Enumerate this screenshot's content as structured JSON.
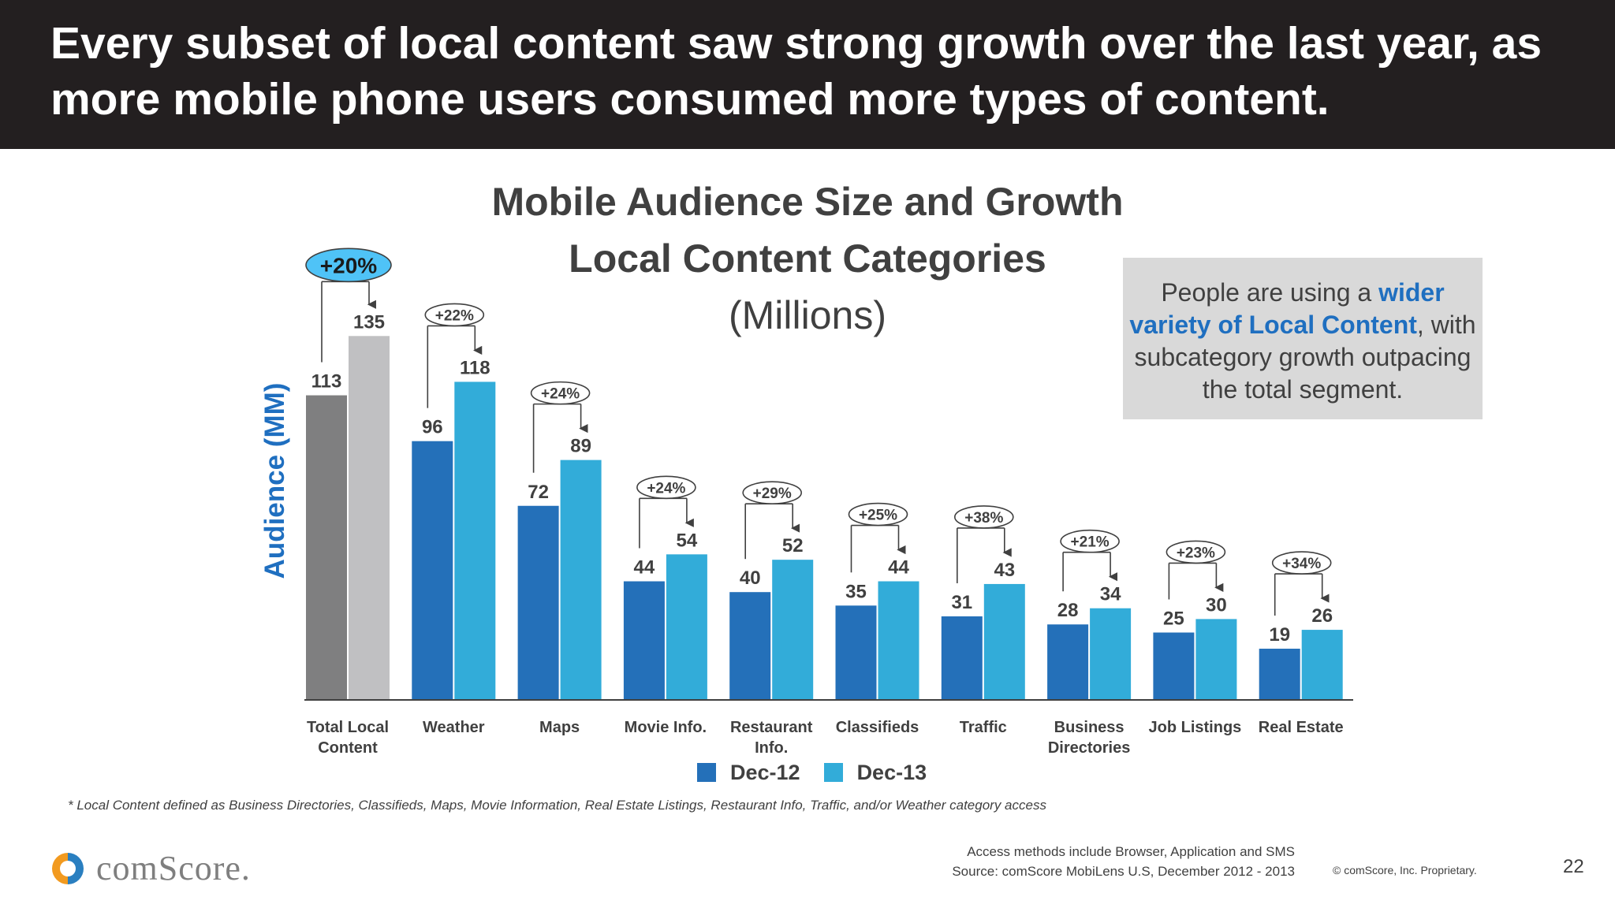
{
  "slide": {
    "headline": "Every subset of local content saw strong growth over the last year, as\nmore mobile phone users consumed more types of content.",
    "callout": {
      "before": "People are using a ",
      "emphasis": "wider variety of Local Content",
      "after": ", with subcategory growth outpacing the total segment."
    },
    "footnote": "* Local Content defined as Business Directories, Classifieds, Maps, Movie Information, Real Estate Listings, Restaurant Info, Traffic, and/or Weather category access",
    "logo_text": "comScore.",
    "source_line1": "Access methods include Browser, Application and SMS",
    "source_line2": "Source: comScore MobiLens U.S, December 2012 - 2013",
    "copyright": "© comScore, Inc. Proprietary.",
    "page_number": "22"
  },
  "chart_data": {
    "type": "bar",
    "title": "Mobile Audience Size and Growth",
    "subtitle": "Local Content Categories",
    "unit": "(Millions)",
    "ylabel": "Audience (MM)",
    "xlabel": "",
    "ylim": [
      0,
      135
    ],
    "grid": false,
    "legend_position": "bottom",
    "categories": [
      "Total Local Content",
      "Weather",
      "Maps",
      "Movie Info.",
      "Restaurant Info.",
      "Classifieds",
      "Traffic",
      "Business Directories",
      "Job Listings",
      "Real Estate"
    ],
    "category_lines": [
      [
        "Total Local",
        "Content"
      ],
      [
        "Weather"
      ],
      [
        "Maps"
      ],
      [
        "Movie Info."
      ],
      [
        "Restaurant",
        "Info."
      ],
      [
        "Classifieds"
      ],
      [
        "Traffic"
      ],
      [
        "Business",
        "Directories"
      ],
      [
        "Job Listings"
      ],
      [
        "Real Estate"
      ]
    ],
    "series": [
      {
        "name": "Dec-12",
        "values": [
          113,
          96,
          72,
          44,
          40,
          35,
          31,
          28,
          25,
          19
        ]
      },
      {
        "name": "Dec-13",
        "values": [
          135,
          118,
          89,
          54,
          52,
          44,
          43,
          34,
          30,
          26
        ]
      }
    ],
    "growth_labels": [
      "+20%",
      "+22%",
      "+24%",
      "+24%",
      "+29%",
      "+25%",
      "+38%",
      "+21%",
      "+23%",
      "+34%"
    ],
    "colors": {
      "dec12": "#2470b9",
      "dec13": "#32acd9",
      "total_dec12": "#7f7f80",
      "total_dec13": "#c0c0c2",
      "highlight_badge": "#4fc3f7",
      "ylabel": "#1f6fc0"
    }
  }
}
